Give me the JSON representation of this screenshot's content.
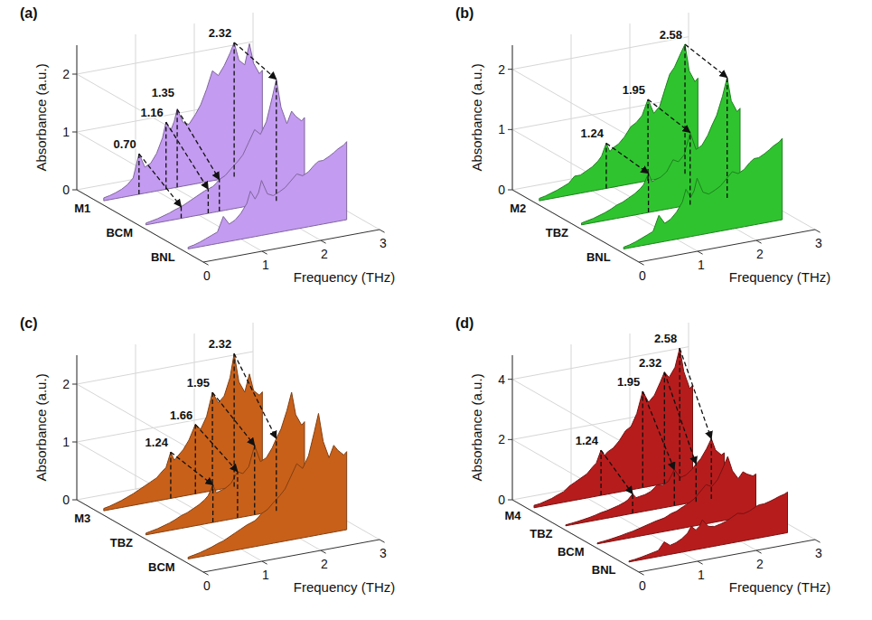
{
  "chart_data": [
    {
      "type": "waterfall",
      "title": "(a)",
      "x_label": "Frequency (THz)",
      "y_label": "Absorbance (a.u.)",
      "grid": true,
      "x": [
        0.1,
        0.2,
        0.3,
        0.4,
        0.5,
        0.6,
        0.7,
        0.8,
        0.9,
        1,
        1.1,
        1.16,
        1.24,
        1.3,
        1.35,
        1.45,
        1.55,
        1.66,
        1.75,
        1.85,
        1.95,
        2.05,
        2.15,
        2.25,
        2.32,
        2.4,
        2.5,
        2.58,
        2.65,
        2.75,
        2.8
      ],
      "xlim": [
        0,
        3
      ],
      "xticks": [
        0,
        1,
        2,
        3
      ],
      "ylim": [
        0,
        2.5
      ],
      "yticks": [
        0,
        1,
        2
      ],
      "series": [
        {
          "name": "M1",
          "color": "#c39bf0",
          "values": [
            0.05,
            0.07,
            0.1,
            0.14,
            0.2,
            0.3,
            0.7,
            0.45,
            0.5,
            0.65,
            0.9,
            1.16,
            1.0,
            1.15,
            1.35,
            1.1,
            1.05,
            1.2,
            1.35,
            1.6,
            1.9,
            1.8,
            1.95,
            2.15,
            2.32,
            2.0,
            1.9,
            2.25,
            1.9,
            1.7,
            1.75
          ]
        },
        {
          "name": "BCM",
          "color": "#c39bf0",
          "values": [
            0.03,
            0.05,
            0.07,
            0.1,
            0.13,
            0.17,
            0.2,
            0.25,
            0.3,
            0.35,
            0.4,
            0.42,
            0.45,
            0.5,
            0.55,
            0.6,
            0.7,
            0.8,
            0.9,
            1.1,
            1.3,
            1.2,
            1.4,
            1.8,
            2.1,
            1.6,
            1.3,
            1.5,
            1.4,
            1.3,
            1.35
          ]
        },
        {
          "name": "BNL",
          "color": "#c39bf0",
          "values": [
            0.03,
            0.05,
            0.08,
            0.12,
            0.16,
            0.2,
            0.45,
            0.3,
            0.35,
            0.45,
            0.6,
            0.8,
            0.65,
            0.75,
            0.95,
            0.7,
            0.65,
            0.7,
            0.75,
            0.85,
            0.95,
            0.9,
            0.95,
            1.05,
            1.1,
            1.1,
            1.15,
            1.2,
            1.25,
            1.3,
            1.35
          ]
        }
      ],
      "annotations": [
        {
          "x": 0.7,
          "label": "0.70"
        },
        {
          "x": 1.16,
          "label": "1.16"
        },
        {
          "x": 1.35,
          "label": "1.35"
        },
        {
          "x": 2.32,
          "label": "2.32"
        }
      ]
    },
    {
      "type": "waterfall",
      "title": "(b)",
      "x_label": "Frequency (THz)",
      "y_label": "Absorbance (a.u.)",
      "grid": true,
      "x": [
        0.1,
        0.2,
        0.3,
        0.4,
        0.5,
        0.6,
        0.7,
        0.8,
        0.9,
        1,
        1.1,
        1.16,
        1.24,
        1.3,
        1.35,
        1.45,
        1.55,
        1.66,
        1.75,
        1.85,
        1.95,
        2.05,
        2.15,
        2.25,
        2.32,
        2.4,
        2.5,
        2.58,
        2.65,
        2.75,
        2.8
      ],
      "xlim": [
        0,
        3
      ],
      "xticks": [
        0,
        1,
        2,
        3
      ],
      "ylim": [
        0,
        2.4
      ],
      "yticks": [
        0,
        1,
        2
      ],
      "series": [
        {
          "name": "M2",
          "color": "#2fc42f",
          "values": [
            0.04,
            0.06,
            0.09,
            0.12,
            0.16,
            0.2,
            0.3,
            0.3,
            0.35,
            0.4,
            0.48,
            0.55,
            0.75,
            0.6,
            0.65,
            0.7,
            0.8,
            0.95,
            1.0,
            1.1,
            1.35,
            1.1,
            1.2,
            1.5,
            1.7,
            1.8,
            2.0,
            2.15,
            1.7,
            1.5,
            1.55
          ]
        },
        {
          "name": "TBZ",
          "color": "#2fc42f",
          "values": [
            0.03,
            0.05,
            0.07,
            0.1,
            0.13,
            0.17,
            0.22,
            0.25,
            0.3,
            0.35,
            0.42,
            0.48,
            0.65,
            0.5,
            0.52,
            0.55,
            0.62,
            0.8,
            0.75,
            0.85,
            1.2,
            0.9,
            0.95,
            1.1,
            1.25,
            1.4,
            1.7,
            2.0,
            1.6,
            1.4,
            1.45
          ]
        },
        {
          "name": "BNL",
          "color": "#2fc42f",
          "values": [
            0.03,
            0.05,
            0.08,
            0.12,
            0.16,
            0.2,
            0.45,
            0.3,
            0.35,
            0.45,
            0.6,
            0.8,
            0.65,
            0.75,
            0.95,
            0.7,
            0.65,
            0.7,
            0.75,
            0.85,
            0.95,
            0.9,
            0.95,
            1.05,
            1.1,
            1.1,
            1.15,
            1.2,
            1.25,
            1.3,
            1.35
          ]
        }
      ],
      "annotations": [
        {
          "x": 1.24,
          "label": "1.24"
        },
        {
          "x": 1.95,
          "label": "1.95"
        },
        {
          "x": 2.58,
          "label": "2.58"
        }
      ]
    },
    {
      "type": "waterfall",
      "title": "(c)",
      "x_label": "Frequency (THz)",
      "y_label": "Absorbance (a.u.)",
      "grid": true,
      "x": [
        0.1,
        0.2,
        0.3,
        0.4,
        0.5,
        0.6,
        0.7,
        0.8,
        0.9,
        1,
        1.1,
        1.16,
        1.24,
        1.3,
        1.35,
        1.45,
        1.55,
        1.66,
        1.75,
        1.85,
        1.95,
        2.05,
        2.15,
        2.25,
        2.32,
        2.4,
        2.5,
        2.58,
        2.65,
        2.75,
        2.8
      ],
      "xlim": [
        0,
        3
      ],
      "xticks": [
        0,
        1,
        2,
        3
      ],
      "ylim": [
        0,
        2.5
      ],
      "yticks": [
        0,
        1,
        2
      ],
      "series": [
        {
          "name": "M3",
          "color": "#c8601a",
          "values": [
            0.04,
            0.06,
            0.09,
            0.12,
            0.16,
            0.2,
            0.25,
            0.3,
            0.35,
            0.4,
            0.5,
            0.55,
            0.8,
            0.65,
            0.7,
            0.8,
            0.95,
            1.2,
            1.1,
            1.3,
            1.7,
            1.5,
            1.6,
            1.9,
            2.3,
            1.8,
            1.6,
            1.9,
            1.6,
            1.5,
            1.55
          ]
        },
        {
          "name": "TBZ",
          "color": "#c8601a",
          "values": [
            0.03,
            0.05,
            0.07,
            0.1,
            0.13,
            0.17,
            0.22,
            0.25,
            0.3,
            0.35,
            0.42,
            0.48,
            0.65,
            0.5,
            0.52,
            0.55,
            0.62,
            0.8,
            0.75,
            0.85,
            1.2,
            0.9,
            0.95,
            1.1,
            1.25,
            1.4,
            1.7,
            2.0,
            1.6,
            1.4,
            1.45
          ]
        },
        {
          "name": "BCM",
          "color": "#c8601a",
          "values": [
            0.03,
            0.05,
            0.07,
            0.1,
            0.13,
            0.17,
            0.2,
            0.25,
            0.3,
            0.35,
            0.4,
            0.42,
            0.45,
            0.5,
            0.55,
            0.6,
            0.7,
            0.8,
            0.9,
            1.1,
            1.3,
            1.2,
            1.4,
            1.8,
            2.1,
            1.6,
            1.3,
            1.5,
            1.4,
            1.3,
            1.35
          ]
        }
      ],
      "annotations": [
        {
          "x": 1.24,
          "label": "1.24"
        },
        {
          "x": 1.66,
          "label": "1.66"
        },
        {
          "x": 1.95,
          "label": "1.95"
        },
        {
          "x": 2.32,
          "label": "2.32"
        }
      ]
    },
    {
      "type": "waterfall",
      "title": "(d)",
      "x_label": "Frequency (THz)",
      "y_label": "Absorbance (a.u.)",
      "grid": true,
      "x": [
        0.1,
        0.2,
        0.3,
        0.4,
        0.5,
        0.6,
        0.7,
        0.8,
        0.9,
        1,
        1.1,
        1.16,
        1.24,
        1.3,
        1.35,
        1.45,
        1.55,
        1.66,
        1.75,
        1.85,
        1.95,
        2.05,
        2.15,
        2.25,
        2.32,
        2.4,
        2.5,
        2.58,
        2.65,
        2.75,
        2.8
      ],
      "xlim": [
        0,
        3
      ],
      "xticks": [
        0,
        1,
        2,
        3
      ],
      "ylim": [
        0,
        4.8
      ],
      "yticks": [
        0,
        2,
        4
      ],
      "series": [
        {
          "name": "M4",
          "color": "#b71c1c",
          "values": [
            0.08,
            0.1,
            0.15,
            0.2,
            0.28,
            0.35,
            0.5,
            0.6,
            0.7,
            0.8,
            1.0,
            1.1,
            1.5,
            1.3,
            1.4,
            1.5,
            1.7,
            2.0,
            2.1,
            2.5,
            3.2,
            2.8,
            3.0,
            3.4,
            3.7,
            3.5,
            3.8,
            4.4,
            3.6,
            3.0,
            3.1
          ]
        },
        {
          "name": "TBZ",
          "color": "#b71c1c",
          "values": [
            0.03,
            0.05,
            0.07,
            0.1,
            0.13,
            0.17,
            0.22,
            0.25,
            0.3,
            0.35,
            0.42,
            0.48,
            0.65,
            0.5,
            0.52,
            0.55,
            0.62,
            0.8,
            0.75,
            0.85,
            1.2,
            0.9,
            0.95,
            1.1,
            1.25,
            1.4,
            1.7,
            2.0,
            1.6,
            1.4,
            1.45
          ]
        },
        {
          "name": "BCM",
          "color": "#b71c1c",
          "values": [
            0.03,
            0.05,
            0.07,
            0.1,
            0.13,
            0.17,
            0.2,
            0.25,
            0.3,
            0.35,
            0.4,
            0.42,
            0.45,
            0.5,
            0.55,
            0.6,
            0.7,
            0.8,
            0.9,
            1.1,
            1.3,
            1.2,
            1.4,
            1.8,
            2.1,
            1.6,
            1.3,
            1.5,
            1.4,
            1.3,
            1.35
          ]
        },
        {
          "name": "BNL",
          "color": "#b71c1c",
          "values": [
            0.03,
            0.05,
            0.08,
            0.12,
            0.16,
            0.2,
            0.45,
            0.3,
            0.35,
            0.45,
            0.6,
            0.8,
            0.65,
            0.75,
            0.95,
            0.7,
            0.65,
            0.7,
            0.75,
            0.85,
            0.95,
            0.9,
            0.95,
            1.05,
            1.1,
            1.1,
            1.15,
            1.2,
            1.25,
            1.3,
            1.35
          ]
        }
      ],
      "annotations": [
        {
          "x": 1.24,
          "label": "1.24"
        },
        {
          "x": 1.95,
          "label": "1.95"
        },
        {
          "x": 2.32,
          "label": "2.32"
        },
        {
          "x": 2.58,
          "label": "2.58"
        }
      ]
    }
  ]
}
